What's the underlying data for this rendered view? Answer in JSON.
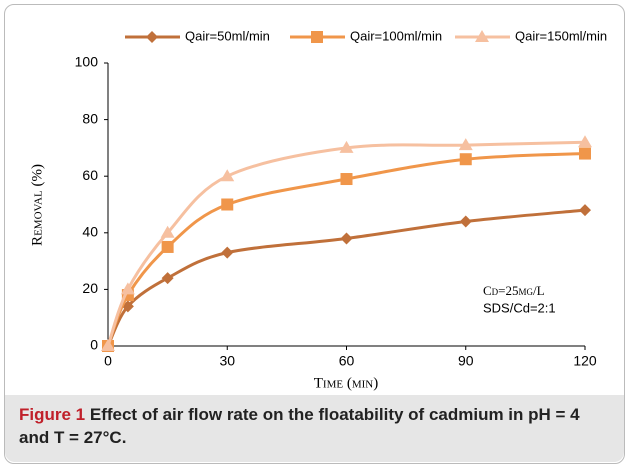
{
  "chart_data": {
    "type": "line",
    "x": [
      0,
      5,
      15,
      30,
      60,
      90,
      120
    ],
    "series": [
      {
        "name": "Qair=50ml/min",
        "color": "#c0703a",
        "marker": "diamond",
        "values": [
          0,
          14,
          24,
          33,
          38,
          44,
          48
        ]
      },
      {
        "name": "Qair=100ml/min",
        "color": "#f0964a",
        "marker": "square",
        "values": [
          0,
          18,
          35,
          50,
          59,
          66,
          68
        ]
      },
      {
        "name": "Qair=150ml/min",
        "color": "#f6c0a0",
        "marker": "triangle",
        "values": [
          0,
          20,
          40,
          60,
          70,
          71,
          72
        ]
      }
    ],
    "xlim": [
      0,
      120
    ],
    "xticks": [
      0,
      30,
      60,
      90,
      120
    ],
    "ylim": [
      0,
      100
    ],
    "yticks": [
      0,
      20,
      40,
      60,
      80,
      100
    ],
    "x_label": "Time (min)",
    "y_label": "Removal (%)",
    "annotations": [
      "Cd=25mg/L",
      "SDS/Cd=2:1"
    ],
    "legend": "top",
    "caption_label": "Figure 1",
    "caption": "Effect of air flow rate on the floatability of cadmium in pH = 4 and T = 27°C."
  }
}
